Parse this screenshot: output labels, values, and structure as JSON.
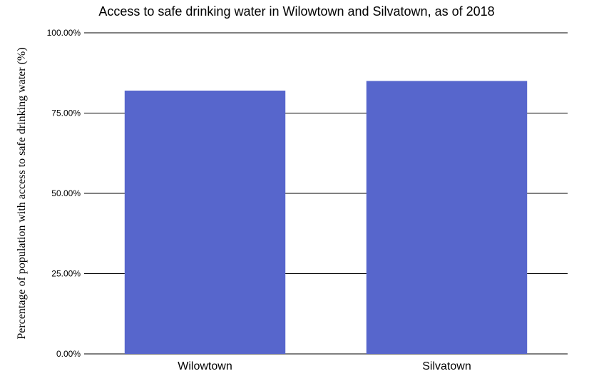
{
  "chart_data": {
    "type": "bar",
    "title": "Access to safe drinking water in Wilowtown and Silvatown, as of 2018",
    "xlabel": "",
    "ylabel": "Percentage of population with access to safe drinking water (%)",
    "categories": [
      "Wilowtown",
      "Silvatown"
    ],
    "values": [
      82,
      85
    ],
    "ylim": [
      0,
      100
    ],
    "yticks": [
      0,
      25,
      50,
      75,
      100
    ],
    "ytick_labels": [
      "0.00%",
      "25.00%",
      "50.00%",
      "75.00%",
      "100.00%"
    ],
    "grid": true,
    "legend": "none",
    "bar_color": "#5766cc"
  }
}
